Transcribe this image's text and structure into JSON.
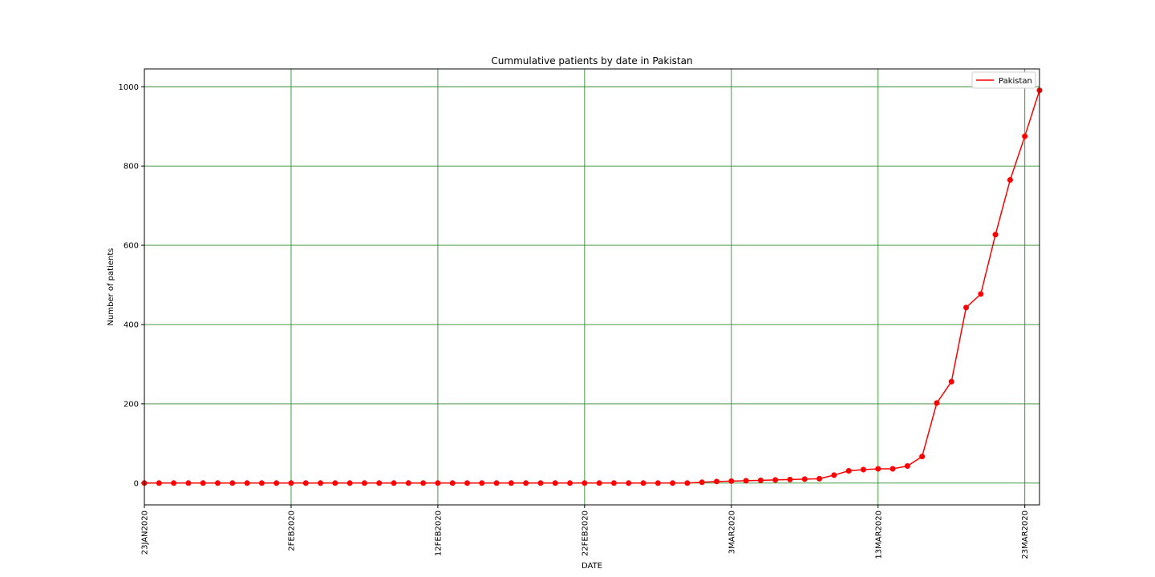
{
  "chart_data": {
    "type": "line",
    "title": "Cummulative patients by date in Pakistan",
    "xlabel": "DATE",
    "ylabel": "Number of patients",
    "x_start": "2020-01-23",
    "x_end": "2020-03-24",
    "x_ticks": [
      {
        "date": "2020-01-23",
        "label": "23JAN2020"
      },
      {
        "date": "2020-02-02",
        "label": "2FEB2020"
      },
      {
        "date": "2020-02-12",
        "label": "12FEB2020"
      },
      {
        "date": "2020-02-22",
        "label": "22FEB2020"
      },
      {
        "date": "2020-03-03",
        "label": "3MAR2020"
      },
      {
        "date": "2020-03-13",
        "label": "13MAR2020"
      },
      {
        "date": "2020-03-23",
        "label": "23MAR2020"
      }
    ],
    "ylim": [
      -55,
      1045
    ],
    "y_ticks": [
      0,
      200,
      400,
      600,
      800,
      1000
    ],
    "grid": true,
    "grid_color": "#2e8b2e",
    "legend": "top-right",
    "series": [
      {
        "name": "Pakistan",
        "color": "#ff0000",
        "values": [
          0,
          0,
          0,
          0,
          0,
          0,
          0,
          0,
          0,
          0,
          0,
          0,
          0,
          0,
          0,
          0,
          0,
          0,
          0,
          0,
          0,
          0,
          0,
          0,
          0,
          0,
          0,
          0,
          0,
          0,
          0,
          0,
          0,
          0,
          0,
          0,
          0,
          0,
          2,
          4,
          5,
          6,
          7,
          8,
          9,
          10,
          11,
          20,
          31,
          34,
          36,
          36,
          43,
          67,
          202,
          256,
          443,
          477,
          627,
          765,
          875,
          991
        ]
      }
    ]
  }
}
